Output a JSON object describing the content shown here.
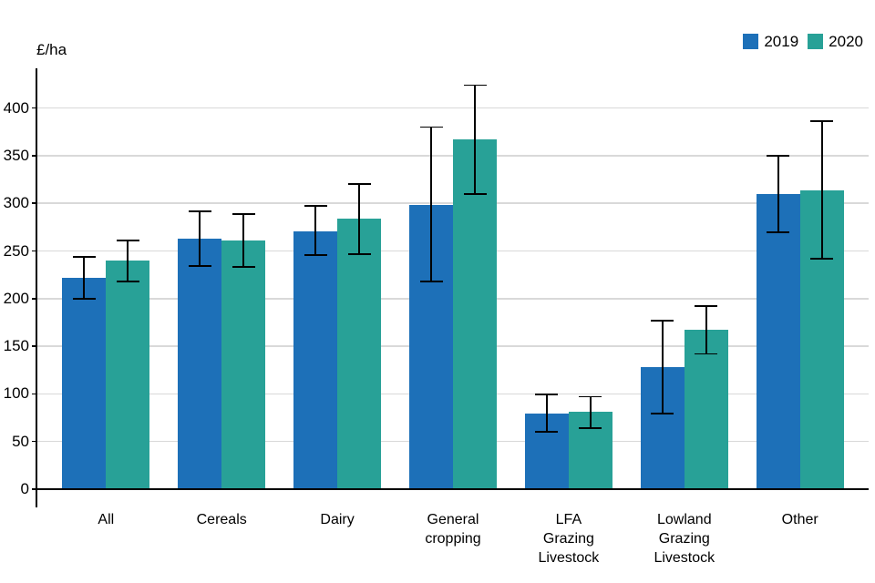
{
  "chart_data": {
    "type": "bar",
    "title": "",
    "ylabel": "£/ha",
    "xlabel": "",
    "grid": "horizontal",
    "legend_position": "top-right",
    "categories": [
      "All",
      "Cereals",
      "Dairy",
      "General cropping",
      "LFA Grazing Livestock",
      "Lowland Grazing Livestock",
      "Other"
    ],
    "category_label_lines": [
      [
        "All"
      ],
      [
        "Cereals"
      ],
      [
        "Dairy"
      ],
      [
        "General",
        "cropping"
      ],
      [
        "LFA",
        "Grazing",
        "Livestock"
      ],
      [
        "Lowland",
        "Grazing",
        "Livestock"
      ],
      [
        "Other"
      ]
    ],
    "series": [
      {
        "name": "2019",
        "color": "#1d70b8",
        "values": [
          222,
          263,
          271,
          298,
          79,
          128,
          310
        ],
        "error_low": [
          200,
          234,
          246,
          218,
          60,
          79,
          270
        ],
        "error_high": [
          244,
          292,
          297,
          380,
          99,
          177,
          350
        ]
      },
      {
        "name": "2020",
        "color": "#28a197",
        "values": [
          240,
          261,
          284,
          367,
          81,
          167,
          314
        ],
        "error_low": [
          218,
          233,
          247,
          310,
          64,
          142,
          242
        ],
        "error_high": [
          261,
          289,
          320,
          424,
          97,
          192,
          386
        ]
      }
    ],
    "yticks": [
      0,
      50,
      100,
      150,
      200,
      250,
      300,
      350,
      400
    ],
    "ylim": [
      0,
      442
    ],
    "colors": {
      "gridline": "#d9d9d9",
      "axis": "#000000",
      "error_bar": "#000000",
      "text": "#000000"
    }
  }
}
